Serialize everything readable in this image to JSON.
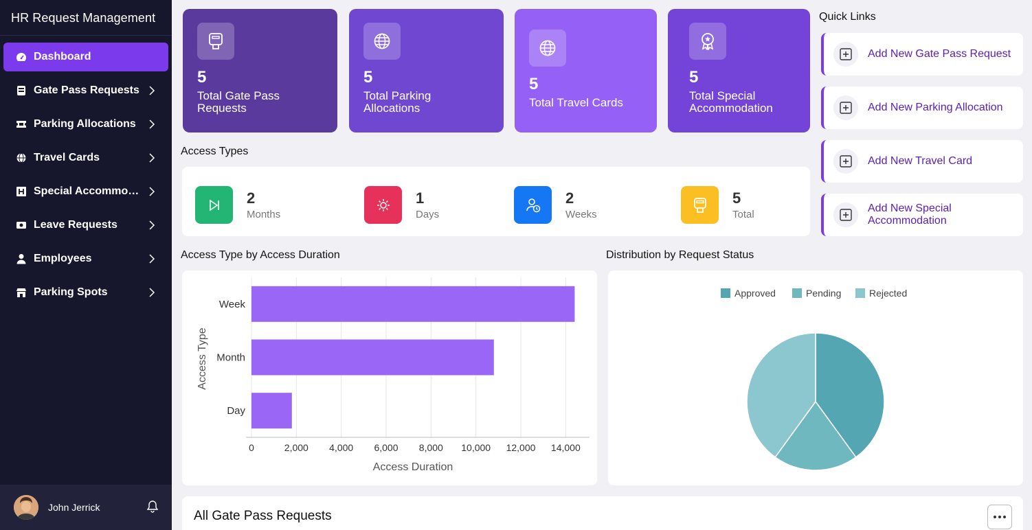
{
  "app": {
    "title": "HR Request Management"
  },
  "sidebar": {
    "items": [
      {
        "label": "Dashboard",
        "icon": "dashboard-icon",
        "active": true
      },
      {
        "label": "Gate Pass Requests",
        "icon": "gate-pass-icon"
      },
      {
        "label": "Parking Allocations",
        "icon": "ticket-icon"
      },
      {
        "label": "Travel Cards",
        "icon": "globe-icon"
      },
      {
        "label": "Special Accommodation",
        "icon": "hotel-icon"
      },
      {
        "label": "Leave Requests",
        "icon": "money-icon"
      },
      {
        "label": "Employees",
        "icon": "user-icon"
      },
      {
        "label": "Parking Spots",
        "icon": "store-icon"
      }
    ]
  },
  "user": {
    "name": "John Jerrick"
  },
  "stats": [
    {
      "value": "5",
      "label": "Total Gate Pass Requests",
      "color": "#5b3a9e"
    },
    {
      "value": "5",
      "label": "Total Parking Allocations",
      "color": "#7047d1"
    },
    {
      "value": "5",
      "label": "Total Travel Cards",
      "color": "#9460f5"
    },
    {
      "value": "5",
      "label": "Total Special Accommodation",
      "color": "#7444d8"
    }
  ],
  "access_types": {
    "title": "Access Types",
    "items": [
      {
        "value": "2",
        "label": "Months",
        "color": "#22b573"
      },
      {
        "value": "1",
        "label": "Days",
        "color": "#e6325a"
      },
      {
        "value": "2",
        "label": "Weeks",
        "color": "#1677f5"
      },
      {
        "value": "5",
        "label": "Total",
        "color": "#fbbf24"
      }
    ]
  },
  "quick_links": {
    "title": "Quick Links",
    "items": [
      {
        "label": "Add New Gate Pass Request"
      },
      {
        "label": "Add New Parking Allocation"
      },
      {
        "label": "Add New Travel Card"
      },
      {
        "label": "Add New Special Accommodation"
      }
    ]
  },
  "chart_titles": {
    "bar": "Access Type by Access Duration",
    "pie": "Distribution by Request Status"
  },
  "chart_data": [
    {
      "type": "bar",
      "orientation": "horizontal",
      "categories": [
        "Week",
        "Month",
        "Day"
      ],
      "values": [
        14400,
        10800,
        1800
      ],
      "xlabel": "Access Duration",
      "ylabel": "Access Type",
      "xlim": [
        0,
        15000
      ],
      "xticks": [
        "0",
        "2,000",
        "4,000",
        "6,000",
        "8,000",
        "10,000",
        "12,000",
        "14,000"
      ],
      "grid": "vertical",
      "color": "#9a66f5"
    },
    {
      "type": "pie",
      "legend_position": "top",
      "slices": [
        {
          "name": "Approved",
          "value": 2,
          "color": "#53a6b2"
        },
        {
          "name": "Pending",
          "value": 1,
          "color": "#6fb8c0"
        },
        {
          "name": "Rejected",
          "value": 2,
          "color": "#8cc6ce"
        }
      ]
    }
  ],
  "bottom": {
    "title": "All Gate Pass Requests"
  }
}
